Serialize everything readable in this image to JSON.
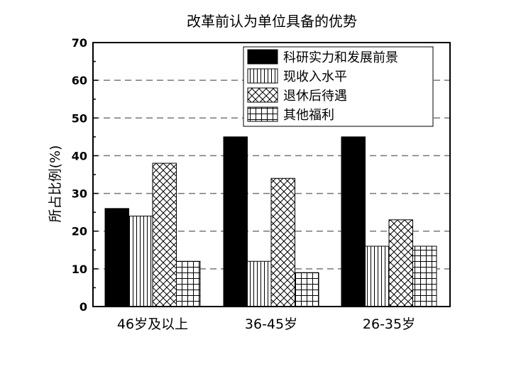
{
  "chart_data": {
    "type": "bar",
    "title": "改革前认为单位具备的优势",
    "xlabel": "",
    "ylabel": "所占比例(%)",
    "categories": [
      "46岁及以上",
      "36-45岁",
      "26-35岁"
    ],
    "ylim": [
      0,
      70
    ],
    "yticks": [
      0,
      10,
      20,
      30,
      40,
      50,
      60,
      70
    ],
    "grid": "horizontal-dashed",
    "legend_position": "top-right",
    "series": [
      {
        "name": "科研实力和发展前景",
        "pattern": "solid",
        "color": "#000000",
        "values": [
          26,
          45,
          45
        ]
      },
      {
        "name": "现收入水平",
        "pattern": "vertical-lines",
        "color": "#000000",
        "values": [
          24,
          12,
          16
        ]
      },
      {
        "name": "退休后待遇",
        "pattern": "crosshatch-diagonal",
        "color": "#000000",
        "values": [
          38,
          34,
          23
        ]
      },
      {
        "name": "其他福利",
        "pattern": "grid",
        "color": "#000000",
        "values": [
          12,
          9,
          16
        ]
      }
    ]
  }
}
